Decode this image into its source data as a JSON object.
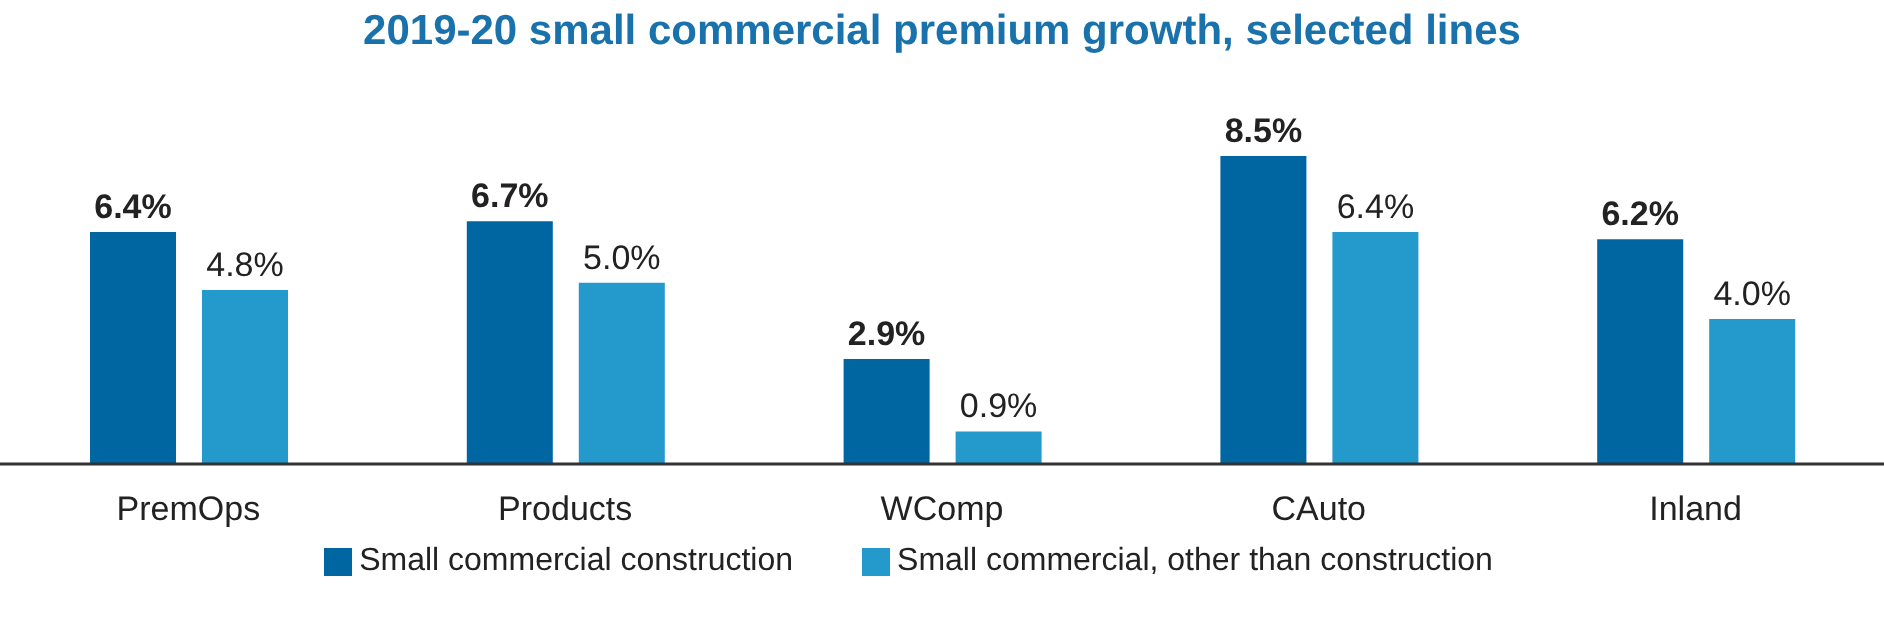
{
  "chart_data": {
    "type": "bar",
    "title": "2019-20 small commercial premium growth, selected lines",
    "categories": [
      "PremOps",
      "Products",
      "WComp",
      "CAuto",
      "Inland"
    ],
    "series": [
      {
        "name": "Small commercial construction",
        "color": "#0066a1",
        "values": [
          6.4,
          6.7,
          2.9,
          8.5,
          6.2
        ],
        "value_labels": [
          "6.4%",
          "6.7%",
          "2.9%",
          "8.5%",
          "6.2%"
        ]
      },
      {
        "name": "Small commercial, other than construction",
        "color": "#2399cc",
        "values": [
          4.8,
          5.0,
          0.9,
          6.4,
          4.0
        ],
        "value_labels": [
          "4.8%",
          "5.0%",
          "0.9%",
          "6.4%",
          "4.0%"
        ]
      }
    ],
    "legend": "bottom",
    "grid": false
  }
}
